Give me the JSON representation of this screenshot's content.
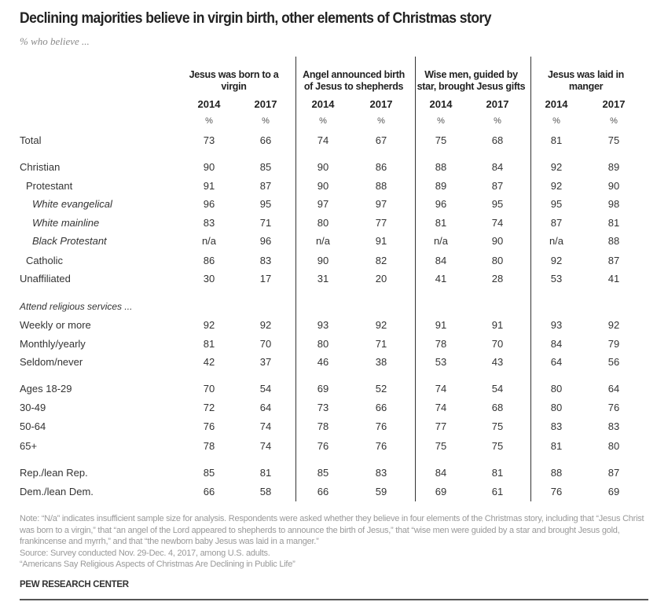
{
  "chart_data": {
    "type": "table",
    "title": "Declining majorities believe in virgin birth, other elements of Christmas story",
    "subtitle": "% who believe ...",
    "groups": [
      {
        "label": "Jesus was born to a virgin"
      },
      {
        "label": "Angel announced birth of Jesus to shepherds"
      },
      {
        "label": "Wise men, guided by star, brought Jesus gifts"
      },
      {
        "label": "Jesus was laid in manger"
      }
    ],
    "years": [
      "2014",
      "2017"
    ],
    "unit": "%",
    "rows": [
      {
        "label": "Total",
        "level": 0,
        "values": [
          "73",
          "66",
          "74",
          "67",
          "75",
          "68",
          "81",
          "75"
        ]
      },
      {
        "label": "Christian",
        "level": 0,
        "values": [
          "90",
          "85",
          "90",
          "86",
          "88",
          "84",
          "92",
          "89"
        ]
      },
      {
        "label": "Protestant",
        "level": 1,
        "values": [
          "91",
          "87",
          "90",
          "88",
          "89",
          "87",
          "92",
          "90"
        ]
      },
      {
        "label": "White evangelical",
        "level": 2,
        "values": [
          "96",
          "95",
          "97",
          "97",
          "96",
          "95",
          "95",
          "98"
        ]
      },
      {
        "label": "White mainline",
        "level": 2,
        "values": [
          "83",
          "71",
          "80",
          "77",
          "81",
          "74",
          "87",
          "81"
        ]
      },
      {
        "label": "Black Protestant",
        "level": 2,
        "values": [
          "n/a",
          "96",
          "n/a",
          "91",
          "n/a",
          "90",
          "n/a",
          "88"
        ]
      },
      {
        "label": "Catholic",
        "level": 1,
        "values": [
          "86",
          "83",
          "90",
          "82",
          "84",
          "80",
          "92",
          "87"
        ]
      },
      {
        "label": "Unaffiliated",
        "level": 0,
        "values": [
          "30",
          "17",
          "31",
          "20",
          "41",
          "28",
          "53",
          "41"
        ]
      },
      {
        "label": "Attend religious services ...",
        "level": 0,
        "heading": true,
        "values": []
      },
      {
        "label": "Weekly or more",
        "level": 0,
        "values": [
          "92",
          "92",
          "93",
          "92",
          "91",
          "91",
          "93",
          "92"
        ]
      },
      {
        "label": "Monthly/yearly",
        "level": 0,
        "values": [
          "81",
          "70",
          "80",
          "71",
          "78",
          "70",
          "84",
          "79"
        ]
      },
      {
        "label": "Seldom/never",
        "level": 0,
        "values": [
          "42",
          "37",
          "46",
          "38",
          "53",
          "43",
          "64",
          "56"
        ]
      },
      {
        "label": "Ages 18-29",
        "level": 0,
        "values": [
          "70",
          "54",
          "69",
          "52",
          "74",
          "54",
          "80",
          "64"
        ]
      },
      {
        "label": "30-49",
        "level": 0,
        "values": [
          "72",
          "64",
          "73",
          "66",
          "74",
          "68",
          "80",
          "76"
        ]
      },
      {
        "label": "50-64",
        "level": 0,
        "values": [
          "76",
          "74",
          "78",
          "76",
          "77",
          "75",
          "83",
          "83"
        ]
      },
      {
        "label": "65+",
        "level": 0,
        "values": [
          "78",
          "74",
          "76",
          "76",
          "75",
          "75",
          "81",
          "80"
        ]
      },
      {
        "label": "Rep./lean Rep.",
        "level": 0,
        "values": [
          "85",
          "81",
          "85",
          "83",
          "84",
          "81",
          "88",
          "87"
        ]
      },
      {
        "label": "Dem./lean Dem.",
        "level": 0,
        "values": [
          "66",
          "58",
          "66",
          "59",
          "69",
          "61",
          "76",
          "69"
        ]
      }
    ]
  },
  "footer": {
    "note": "Note: “N/a” indicates insufficient sample size for analysis. Respondents were asked whether they believe in four elements of the Christmas story, including that “Jesus Christ was born to a virgin,” that “an angel of the Lord appeared to shepherds to announce the birth of Jesus,” that “wise men were guided by a star and brought Jesus gold, frankincense and myrrh,” and that “the newborn baby Jesus was laid in a manger.”",
    "source": "Source: Survey conducted Nov. 29-Dec. 4, 2017, among U.S. adults.",
    "report": "“Americans Say Religious Aspects of Christmas Are Declining in Public Life”",
    "brand": "PEW RESEARCH CENTER"
  }
}
